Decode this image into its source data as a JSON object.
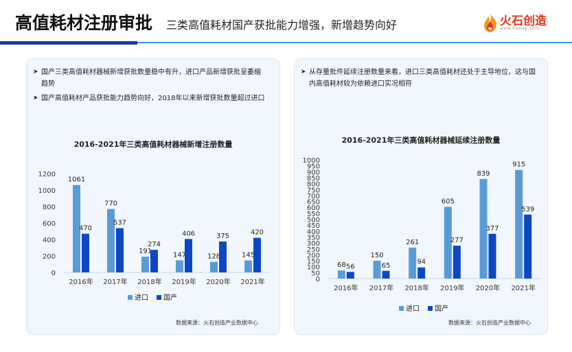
{
  "header": {
    "title": "高值耗材注册审批",
    "subtitle": "三类高值耗材国产获批能力增强，新增趋势向好",
    "logo_text": "火石创造",
    "logo_url": "www.hsmap.com"
  },
  "colors": {
    "import": "#5b9bd5",
    "domestic": "#0d47c4",
    "rule_dark": "#1f3a93",
    "rule_light": "#3f8ce8",
    "panel_bg": "#f2f7fd"
  },
  "left_panel": {
    "bullets": [
      "国产三类高值耗材器械新增获批数量稳中有升，进口产品新增获批呈萎缩趋势",
      "国产高值耗材产品获批能力趋势向好，2018年以来新增获批数量超过进口"
    ],
    "source": "数据来源：火石创造产业数据中心"
  },
  "right_panel": {
    "bullets": [
      "从存量批件延续注册数量来看，进口三类高值耗材还处于主导地位，这与国内高值耗材较为依赖进口实况相符"
    ],
    "source": "数据来源：火石创造产业数据中心"
  },
  "chart_data": [
    {
      "type": "bar",
      "title": "2016-2021年三类高值耗材器械新增注册数量",
      "categories": [
        "2016年",
        "2017年",
        "2018年",
        "2019年",
        "2020年",
        "2021年"
      ],
      "series": [
        {
          "name": "进口",
          "values": [
            1061,
            770,
            191,
            147,
            128,
            145
          ]
        },
        {
          "name": "国产",
          "values": [
            470,
            537,
            274,
            406,
            375,
            420
          ]
        }
      ],
      "yticks": [
        "0",
        "200",
        "400",
        "600",
        "800",
        "1000",
        "1200"
      ],
      "ylim": [
        0,
        1200
      ],
      "xlabel": "",
      "ylabel": "",
      "grid": false,
      "legend": "bottom"
    },
    {
      "type": "bar",
      "title": "2016-2021年三类高值耗材器械延续注册数量",
      "categories": [
        "2016年",
        "2017年",
        "2018年",
        "2019年",
        "2020年",
        "2021年"
      ],
      "series": [
        {
          "name": "进口",
          "values": [
            68,
            150,
            261,
            605,
            839,
            915
          ]
        },
        {
          "name": "国产",
          "values": [
            56,
            65,
            94,
            277,
            377,
            539
          ]
        }
      ],
      "yticks": [
        "0",
        "50",
        "100",
        "150",
        "200",
        "250",
        "300",
        "350",
        "400",
        "450",
        "500",
        "550",
        "600",
        "650",
        "700",
        "750",
        "800",
        "850",
        "900",
        "950",
        "1000"
      ],
      "ylim": [
        0,
        1000
      ],
      "xlabel": "",
      "ylabel": "",
      "grid": false,
      "legend": "bottom"
    }
  ]
}
